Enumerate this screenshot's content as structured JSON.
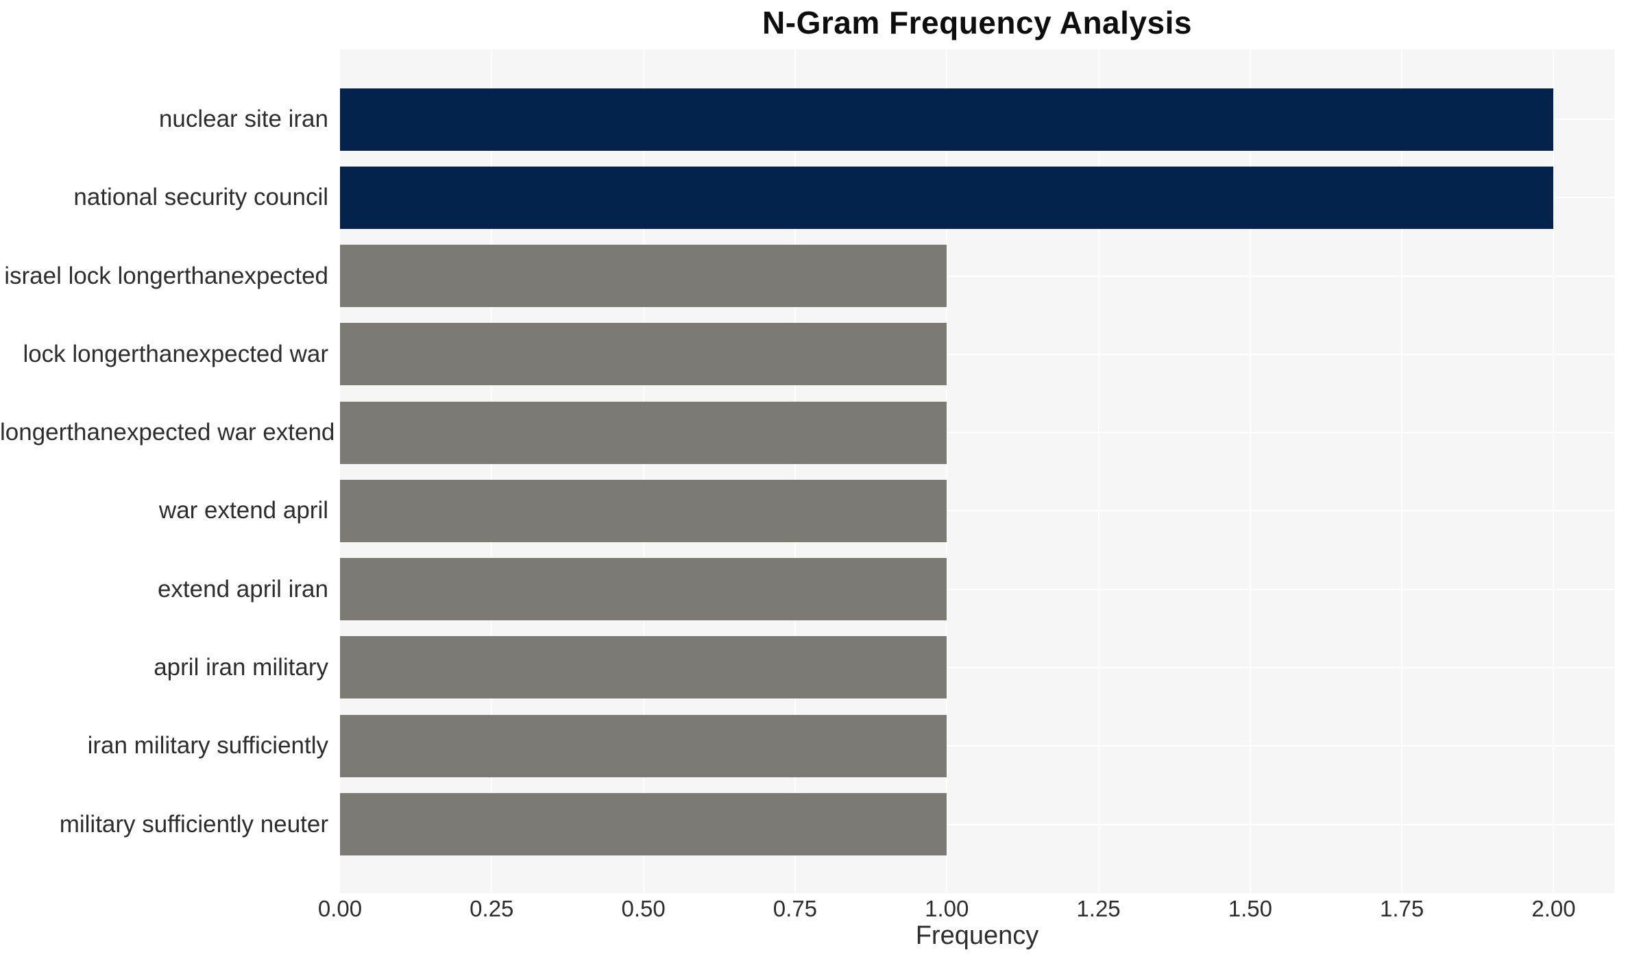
{
  "chart_data": {
    "type": "bar",
    "orientation": "horizontal",
    "title": "N-Gram Frequency Analysis",
    "xlabel": "Frequency",
    "ylabel": "",
    "categories": [
      "nuclear site iran",
      "national security council",
      "israel lock longerthanexpected",
      "lock longerthanexpected war",
      "longerthanexpected war extend",
      "war extend april",
      "extend april iran",
      "april iran military",
      "iran military sufficiently",
      "military sufficiently neuter"
    ],
    "values": [
      2,
      2,
      1,
      1,
      1,
      1,
      1,
      1,
      1,
      1
    ],
    "bar_colors": [
      "#03234d",
      "#03234d",
      "#7b7a75",
      "#7b7a75",
      "#7b7a75",
      "#7b7a75",
      "#7b7a75",
      "#7b7a75",
      "#7b7a75",
      "#7b7a75"
    ],
    "highlight_color": "#03234d",
    "default_color": "#7b7a75",
    "panel_background": "#f7f6f6",
    "gridline_color": "#ffffff",
    "grid": true,
    "legend": false,
    "xlim": [
      0,
      2.1
    ],
    "xticks": [
      "0.00",
      "0.25",
      "0.50",
      "0.75",
      "1.00",
      "1.25",
      "1.50",
      "1.75",
      "2.00"
    ],
    "xtick_values": [
      0,
      0.25,
      0.5,
      0.75,
      1.0,
      1.25,
      1.5,
      1.75,
      2.0
    ]
  }
}
